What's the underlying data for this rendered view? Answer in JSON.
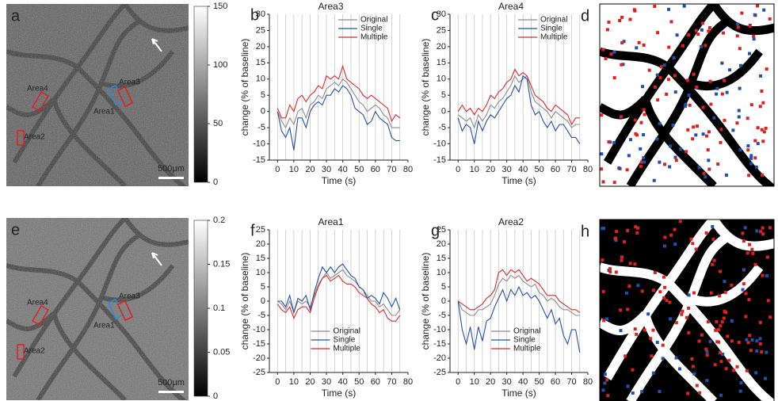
{
  "images": [
    {
      "label": "a",
      "scale_bar": "500μm",
      "colorbar_lim": [
        0,
        150
      ],
      "colorbar_ticks": [
        0,
        50,
        100,
        150
      ],
      "regions": [
        {
          "name": "Area1",
          "color": "#2a8ad8"
        },
        {
          "name": "Area2",
          "color": "#e02020"
        },
        {
          "name": "Area3",
          "color": "#e02020"
        },
        {
          "name": "Area4",
          "color": "#e02020"
        }
      ]
    },
    {
      "label": "e",
      "scale_bar": "500μm",
      "colorbar_lim": [
        0,
        0.2
      ],
      "colorbar_ticks": [
        0,
        0.05,
        0.1,
        0.15,
        0.2
      ],
      "regions": [
        {
          "name": "Area1",
          "color": "#2a8ad8"
        },
        {
          "name": "Area2",
          "color": "#e02020"
        },
        {
          "name": "Area3",
          "color": "#e02020"
        },
        {
          "name": "Area4",
          "color": "#e02020"
        }
      ]
    }
  ],
  "maps": [
    {
      "label": "d"
    },
    {
      "label": "h"
    }
  ],
  "chart_data": [
    {
      "type": "line",
      "panel_label": "b",
      "title": "Area3",
      "x_label": "Time (s)",
      "y_label": "change (% of baseline)",
      "x": [
        0,
        2.5,
        5,
        7.5,
        10,
        12.5,
        15,
        17.5,
        20,
        22.5,
        25,
        27.5,
        30,
        32.5,
        35,
        37.5,
        40,
        42.5,
        45,
        47.5,
        50,
        52.5,
        55,
        57.5,
        60,
        62.5,
        65,
        67.5,
        70,
        72.5,
        75
      ],
      "xlim": [
        -5,
        80
      ],
      "xticks": [
        0,
        10,
        20,
        30,
        40,
        50,
        60,
        70,
        80
      ],
      "ylim": [
        -15,
        30
      ],
      "yticks": [
        -15,
        -10,
        -5,
        0,
        5,
        10,
        15,
        20,
        25,
        30
      ],
      "grid": true,
      "legend": "upper right",
      "series": [
        {
          "name": "Original",
          "color": "#8c8c8c",
          "values": [
            0,
            -3,
            -5,
            -2,
            -4,
            0,
            1,
            -2,
            2,
            3,
            5,
            4,
            7,
            8,
            9,
            8,
            10,
            9,
            7,
            5,
            3,
            2,
            0,
            1,
            2,
            1,
            -1,
            -2,
            -5,
            -5,
            -5
          ]
        },
        {
          "name": "Single",
          "color": "#2350a8",
          "values": [
            0,
            -6,
            -8,
            -5,
            -12,
            -2,
            -2,
            -5,
            0,
            2,
            3,
            2,
            5,
            5,
            7,
            6,
            8,
            7,
            5,
            1,
            0,
            -1,
            -4,
            -3,
            0,
            -2,
            -3,
            -4,
            -8,
            -9,
            -9
          ]
        },
        {
          "name": "Multiple",
          "color": "#e02828",
          "values": [
            1,
            -2,
            -2,
            2,
            0,
            4,
            5,
            3,
            5,
            6,
            8,
            7,
            11,
            10,
            11,
            10,
            14,
            10,
            9,
            8,
            7,
            5,
            4,
            5,
            4,
            3,
            2,
            1,
            -3,
            -1,
            -2
          ]
        }
      ]
    },
    {
      "type": "line",
      "panel_label": "c",
      "title": "Area4",
      "x_label": "Time (s)",
      "y_label": "change (% of baseline)",
      "x": [
        0,
        2.5,
        5,
        7.5,
        10,
        12.5,
        15,
        17.5,
        20,
        22.5,
        25,
        27.5,
        30,
        32.5,
        35,
        37.5,
        40,
        42.5,
        45,
        47.5,
        50,
        52.5,
        55,
        57.5,
        60,
        62.5,
        65,
        67.5,
        70,
        72.5,
        75
      ],
      "xlim": [
        -5,
        80
      ],
      "xticks": [
        0,
        10,
        20,
        30,
        40,
        50,
        60,
        70,
        80
      ],
      "ylim": [
        -15,
        30
      ],
      "yticks": [
        -15,
        -10,
        -5,
        0,
        5,
        10,
        15,
        20,
        25,
        30
      ],
      "grid": true,
      "legend": "upper right",
      "series": [
        {
          "name": "Original",
          "color": "#8c8c8c",
          "values": [
            -1,
            -2,
            -3,
            -2,
            -5,
            -1,
            -3,
            -1,
            2,
            1,
            3,
            4,
            6,
            8,
            11,
            9,
            10,
            11,
            6,
            3,
            2,
            1,
            0,
            -2,
            0,
            -1,
            -2,
            -3,
            -5,
            -4,
            -4
          ]
        },
        {
          "name": "Single",
          "color": "#2350a8",
          "values": [
            -2,
            -6,
            -4,
            -5,
            -10,
            -3,
            -6,
            -3,
            -1,
            -2,
            0,
            2,
            4,
            5,
            8,
            6,
            11,
            10,
            2,
            -1,
            0,
            -3,
            -5,
            -3,
            -6,
            -4,
            -4,
            -6,
            -8,
            -8,
            -10
          ]
        },
        {
          "name": "Multiple",
          "color": "#e02828",
          "values": [
            0,
            2,
            0,
            1,
            -1,
            1,
            0,
            2,
            5,
            4,
            6,
            7,
            9,
            10,
            13,
            11,
            12,
            11,
            8,
            5,
            4,
            3,
            1,
            0,
            2,
            1,
            0,
            -1,
            -4,
            -2,
            -2
          ]
        }
      ]
    },
    {
      "type": "line",
      "panel_label": "f",
      "title": "Area1",
      "x_label": "Time (s)",
      "y_label": "change (% of baseline)",
      "x": [
        0,
        2.5,
        5,
        7.5,
        10,
        12.5,
        15,
        17.5,
        20,
        22.5,
        25,
        27.5,
        30,
        32.5,
        35,
        37.5,
        40,
        42.5,
        45,
        47.5,
        50,
        52.5,
        55,
        57.5,
        60,
        62.5,
        65,
        67.5,
        70,
        72.5,
        75
      ],
      "xlim": [
        -5,
        80
      ],
      "xticks": [
        0,
        10,
        20,
        30,
        40,
        50,
        60,
        70,
        80
      ],
      "ylim": [
        -25,
        25
      ],
      "yticks": [
        -25,
        -20,
        -15,
        -10,
        -5,
        0,
        5,
        10,
        15,
        20,
        25
      ],
      "grid": true,
      "legend": "lower center",
      "series": [
        {
          "name": "Original",
          "color": "#8c8c8c",
          "values": [
            0,
            -1,
            -3,
            0,
            -4,
            0,
            -1,
            0,
            -2,
            2,
            6,
            8,
            10,
            8,
            9,
            10,
            11,
            9,
            8,
            7,
            5,
            4,
            2,
            0,
            0,
            -2,
            -1,
            -3,
            -5,
            -5,
            -3
          ]
        },
        {
          "name": "Single",
          "color": "#2350a8",
          "values": [
            0,
            0,
            -2,
            2,
            -4,
            1,
            0,
            2,
            -3,
            3,
            8,
            12,
            10,
            12,
            10,
            12,
            13,
            11,
            9,
            8,
            5,
            4,
            1,
            2,
            1,
            -1,
            3,
            1,
            -2,
            1,
            -3
          ]
        },
        {
          "name": "Multiple",
          "color": "#e02828",
          "values": [
            -1,
            -3,
            -4,
            -2,
            -6,
            -3,
            -2,
            -2,
            -4,
            1,
            5,
            8,
            9,
            7,
            8,
            9,
            7,
            6,
            6,
            5,
            3,
            2,
            1,
            -1,
            -2,
            -4,
            -3,
            -6,
            -7,
            -7,
            -5
          ]
        }
      ]
    },
    {
      "type": "line",
      "panel_label": "g",
      "title": "Area2",
      "x_label": "Time (s)",
      "y_label": "change (% of baseline)",
      "x": [
        0,
        2.5,
        5,
        7.5,
        10,
        12.5,
        15,
        17.5,
        20,
        22.5,
        25,
        27.5,
        30,
        32.5,
        35,
        37.5,
        40,
        42.5,
        45,
        47.5,
        50,
        52.5,
        55,
        57.5,
        60,
        62.5,
        65,
        67.5,
        70,
        72.5,
        75
      ],
      "xlim": [
        -5,
        80
      ],
      "xticks": [
        0,
        10,
        20,
        30,
        40,
        50,
        60,
        70,
        80
      ],
      "ylim": [
        -25,
        25
      ],
      "yticks": [
        -25,
        -20,
        -15,
        -10,
        -5,
        0,
        5,
        10,
        15,
        20,
        25
      ],
      "grid": true,
      "legend": "lower center",
      "series": [
        {
          "name": "Original",
          "color": "#8c8c8c",
          "values": [
            0,
            -3,
            -4,
            -5,
            -5,
            -3,
            -3,
            -2,
            -1,
            2,
            6,
            8,
            7,
            9,
            8,
            9,
            7,
            6,
            5,
            6,
            3,
            2,
            0,
            1,
            0,
            -2,
            -3,
            -3,
            -4,
            -5,
            -5
          ]
        },
        {
          "name": "Single",
          "color": "#2350a8",
          "values": [
            0,
            -10,
            -15,
            -9,
            -17,
            -9,
            -14,
            -7,
            -6,
            -2,
            1,
            4,
            0,
            4,
            2,
            5,
            2,
            3,
            1,
            2,
            0,
            -3,
            -6,
            -3,
            -8,
            -6,
            -12,
            -15,
            -10,
            -10,
            -18
          ]
        },
        {
          "name": "Multiple",
          "color": "#e02828",
          "values": [
            0,
            -1,
            -2,
            -3,
            -3,
            -2,
            -1,
            1,
            2,
            4,
            10,
            11,
            9,
            11,
            10,
            11,
            9,
            7,
            8,
            7,
            6,
            4,
            2,
            2,
            2,
            0,
            -1,
            -2,
            -3,
            -3,
            -4
          ]
        }
      ]
    }
  ]
}
